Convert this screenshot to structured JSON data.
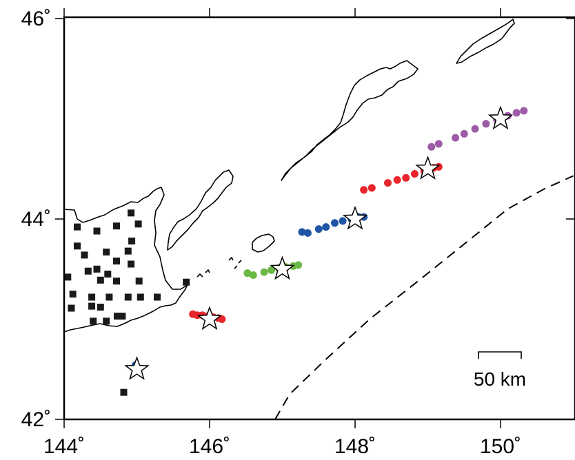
{
  "map": {
    "lon_range": [
      144,
      151
    ],
    "lat_range": [
      42,
      46.1
    ],
    "x_ticks": [
      {
        "value": 144,
        "label": "144˚"
      },
      {
        "value": 146,
        "label": "146˚"
      },
      {
        "value": 148,
        "label": "148˚"
      },
      {
        "value": 150,
        "label": "150˚"
      }
    ],
    "y_ticks": [
      {
        "value": 42,
        "label": "42˚"
      },
      {
        "value": 44,
        "label": "44˚"
      },
      {
        "value": 46,
        "label": "46˚"
      }
    ],
    "scale_bar": {
      "label": "50 km"
    },
    "colors": {
      "red": "#e8262b",
      "green": "#6ab845",
      "blue": "#1f55a5",
      "purple": "#9e5ba8",
      "station": "#1a1a1a",
      "star_fill": "#ffffff",
      "star_stroke": "#000000"
    }
  },
  "chart_data": {
    "type": "scatter",
    "xlabel": "",
    "ylabel": "",
    "xlim": [
      144,
      151
    ],
    "ylim": [
      42,
      46.1
    ],
    "stars": [
      {
        "lon": 145.0,
        "lat": 42.5
      },
      {
        "lon": 146.0,
        "lat": 43.0
      },
      {
        "lon": 147.0,
        "lat": 43.5
      },
      {
        "lon": 148.0,
        "lat": 44.0
      },
      {
        "lon": 149.0,
        "lat": 44.5
      },
      {
        "lon": 150.0,
        "lat": 45.0
      }
    ],
    "clusters": [
      {
        "color_key": "red",
        "points": [
          {
            "lon": 145.77,
            "lat": 43.05
          },
          {
            "lon": 145.83,
            "lat": 43.04
          },
          {
            "lon": 145.9,
            "lat": 43.04
          },
          {
            "lon": 145.97,
            "lat": 43.03
          },
          {
            "lon": 146.05,
            "lat": 43.02
          },
          {
            "lon": 146.12,
            "lat": 43.01
          },
          {
            "lon": 146.17,
            "lat": 43.0
          }
        ]
      },
      {
        "color_key": "green",
        "points": [
          {
            "lon": 146.52,
            "lat": 43.46
          },
          {
            "lon": 146.6,
            "lat": 43.44
          },
          {
            "lon": 146.75,
            "lat": 43.47
          },
          {
            "lon": 146.85,
            "lat": 43.49
          },
          {
            "lon": 146.95,
            "lat": 43.51
          },
          {
            "lon": 147.05,
            "lat": 43.52
          },
          {
            "lon": 147.15,
            "lat": 43.53
          },
          {
            "lon": 147.22,
            "lat": 43.54
          }
        ]
      },
      {
        "color_key": "blue",
        "points": [
          {
            "lon": 147.27,
            "lat": 43.87
          },
          {
            "lon": 147.35,
            "lat": 43.86
          },
          {
            "lon": 147.5,
            "lat": 43.9
          },
          {
            "lon": 147.6,
            "lat": 43.92
          },
          {
            "lon": 147.72,
            "lat": 43.96
          },
          {
            "lon": 147.83,
            "lat": 43.98
          },
          {
            "lon": 147.95,
            "lat": 44.0
          },
          {
            "lon": 148.05,
            "lat": 44.02
          },
          {
            "lon": 148.12,
            "lat": 44.02
          }
        ]
      },
      {
        "color_key": "red",
        "points": [
          {
            "lon": 148.12,
            "lat": 44.29
          },
          {
            "lon": 148.23,
            "lat": 44.31
          },
          {
            "lon": 148.45,
            "lat": 44.36
          },
          {
            "lon": 148.58,
            "lat": 44.39
          },
          {
            "lon": 148.7,
            "lat": 44.41
          },
          {
            "lon": 148.82,
            "lat": 44.45
          },
          {
            "lon": 148.95,
            "lat": 44.48
          },
          {
            "lon": 149.08,
            "lat": 44.51
          },
          {
            "lon": 149.15,
            "lat": 44.52
          }
        ]
      },
      {
        "color_key": "purple",
        "points": [
          {
            "lon": 149.05,
            "lat": 44.72
          },
          {
            "lon": 149.15,
            "lat": 44.75
          },
          {
            "lon": 149.38,
            "lat": 44.81
          },
          {
            "lon": 149.5,
            "lat": 44.85
          },
          {
            "lon": 149.65,
            "lat": 44.9
          },
          {
            "lon": 149.8,
            "lat": 44.95
          },
          {
            "lon": 149.95,
            "lat": 44.99
          },
          {
            "lon": 150.1,
            "lat": 45.03
          },
          {
            "lon": 150.22,
            "lat": 45.06
          },
          {
            "lon": 150.32,
            "lat": 45.08
          }
        ]
      },
      {
        "color_key": "blue",
        "points": [
          {
            "lon": 144.98,
            "lat": 42.54
          }
        ]
      }
    ],
    "stations": [
      {
        "lon": 144.18,
        "lat": 43.92
      },
      {
        "lon": 144.45,
        "lat": 43.88
      },
      {
        "lon": 144.72,
        "lat": 43.93
      },
      {
        "lon": 144.92,
        "lat": 44.06
      },
      {
        "lon": 145.02,
        "lat": 43.95
      },
      {
        "lon": 144.93,
        "lat": 43.78
      },
      {
        "lon": 144.18,
        "lat": 43.73
      },
      {
        "lon": 144.58,
        "lat": 43.67
      },
      {
        "lon": 144.88,
        "lat": 43.68
      },
      {
        "lon": 144.28,
        "lat": 43.64
      },
      {
        "lon": 144.72,
        "lat": 43.58
      },
      {
        "lon": 144.92,
        "lat": 43.55
      },
      {
        "lon": 144.33,
        "lat": 43.48
      },
      {
        "lon": 144.45,
        "lat": 43.5
      },
      {
        "lon": 144.6,
        "lat": 43.45
      },
      {
        "lon": 144.05,
        "lat": 43.42
      },
      {
        "lon": 144.5,
        "lat": 43.39
      },
      {
        "lon": 144.72,
        "lat": 43.38
      },
      {
        "lon": 145.03,
        "lat": 43.38
      },
      {
        "lon": 144.12,
        "lat": 43.25
      },
      {
        "lon": 144.38,
        "lat": 43.22
      },
      {
        "lon": 144.62,
        "lat": 43.22
      },
      {
        "lon": 144.88,
        "lat": 43.22
      },
      {
        "lon": 145.05,
        "lat": 43.22
      },
      {
        "lon": 145.28,
        "lat": 43.22
      },
      {
        "lon": 144.1,
        "lat": 43.11
      },
      {
        "lon": 144.38,
        "lat": 43.13
      },
      {
        "lon": 144.5,
        "lat": 43.12
      },
      {
        "lon": 144.73,
        "lat": 43.03
      },
      {
        "lon": 144.8,
        "lat": 43.03
      },
      {
        "lon": 144.4,
        "lat": 42.98
      },
      {
        "lon": 144.58,
        "lat": 42.98
      },
      {
        "lon": 145.68,
        "lat": 43.37
      },
      {
        "lon": 144.82,
        "lat": 42.27
      }
    ],
    "trench": [
      {
        "lon": 146.9,
        "lat": 42.0
      },
      {
        "lon": 147.1,
        "lat": 42.25
      },
      {
        "lon": 147.6,
        "lat": 42.6
      },
      {
        "lon": 148.2,
        "lat": 43.0
      },
      {
        "lon": 148.9,
        "lat": 43.4
      },
      {
        "lon": 149.5,
        "lat": 43.75
      },
      {
        "lon": 150.1,
        "lat": 44.1
      },
      {
        "lon": 150.6,
        "lat": 44.3
      },
      {
        "lon": 151.0,
        "lat": 44.43
      }
    ]
  }
}
